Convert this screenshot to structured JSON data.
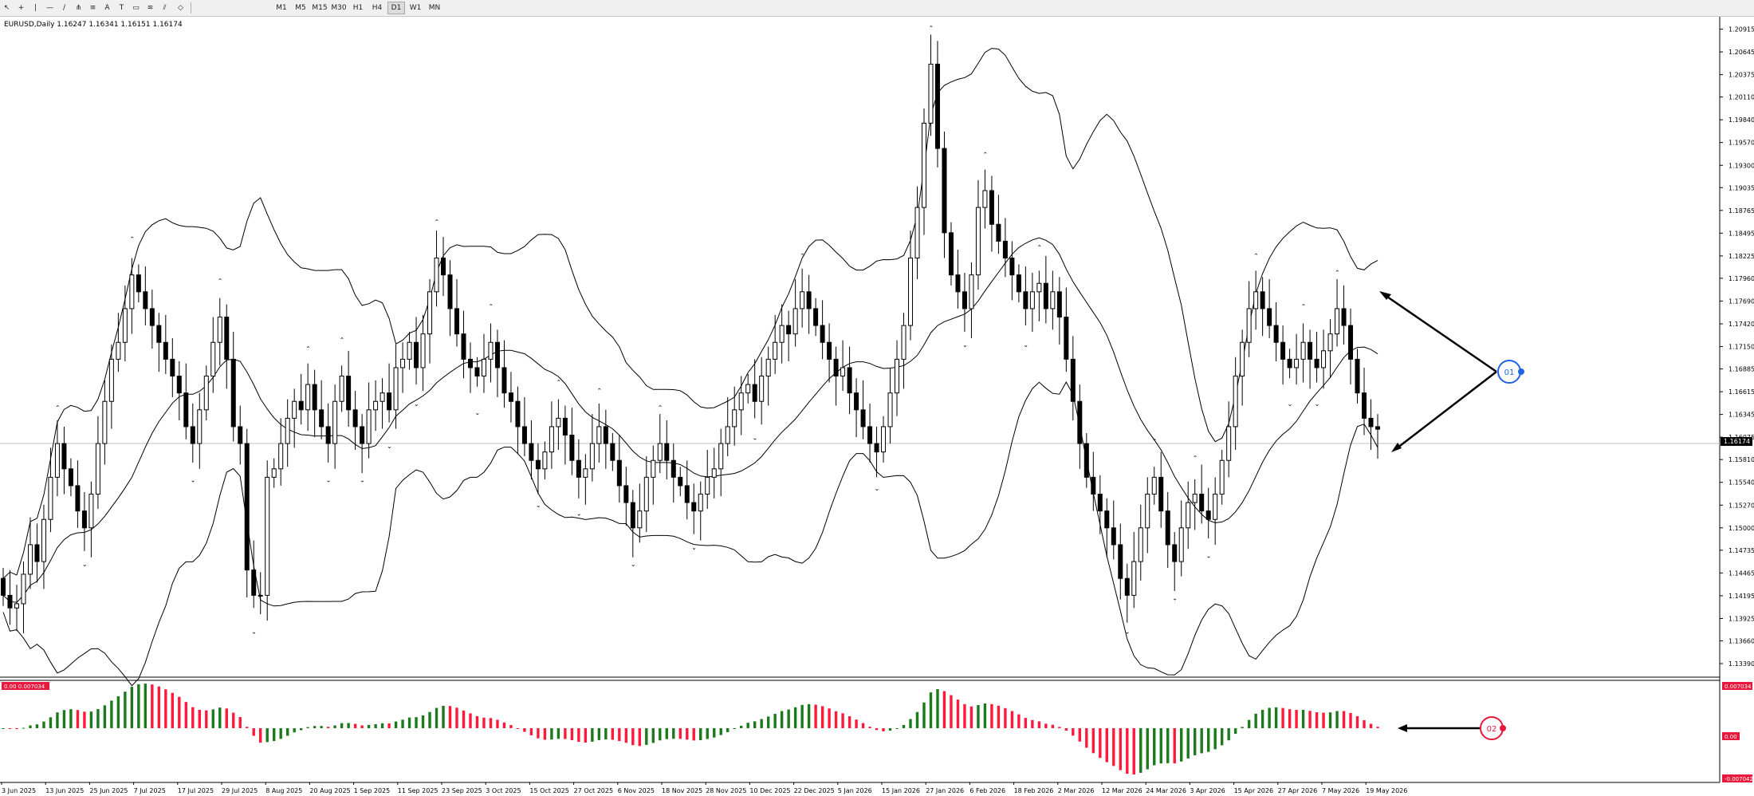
{
  "toolbar": {
    "tools": [
      {
        "name": "cursor-tool-icon",
        "x": 8
      },
      {
        "name": "crosshair-tool-icon",
        "x": 26
      },
      {
        "name": "vertical-line-tool-icon",
        "x": 44
      },
      {
        "name": "horizontal-line-tool-icon",
        "x": 62
      },
      {
        "name": "trendline-tool-icon",
        "x": 80
      },
      {
        "name": "pitchfork-tool-icon",
        "x": 98
      },
      {
        "name": "channel-tool-icon",
        "x": 116
      },
      {
        "name": "text-tool-icon",
        "x": 134
      },
      {
        "name": "text-label-tool-icon",
        "x": 152
      },
      {
        "name": "label-tool-icon",
        "x": 170
      },
      {
        "name": "fibonacci-tool-icon",
        "x": 188
      },
      {
        "name": "gann-tool-icon",
        "x": 206
      },
      {
        "name": "shapes-tool-icon",
        "x": 226
      }
    ],
    "timeframes": [
      "M1",
      "M5",
      "M15",
      "M30",
      "H1",
      "H4",
      "D1",
      "W1",
      "MN"
    ],
    "active_timeframe": "D1"
  },
  "chart_header": "EURUSD,Daily  1.16247 1.16341 1.16151 1.16174",
  "current_price": "1.16174",
  "price_axis_labels": [
    "1.20915",
    "1.20645",
    "1.20375",
    "1.20110",
    "1.19840",
    "1.19570",
    "1.19300",
    "1.19035",
    "1.18765",
    "1.18495",
    "1.18225",
    "1.17960",
    "1.17690",
    "1.17420",
    "1.17150",
    "1.16885",
    "1.16615",
    "1.16345",
    "1.16075",
    "1.15810",
    "1.15540",
    "1.15270",
    "1.15000",
    "1.14735",
    "1.14465",
    "1.14195",
    "1.13925",
    "1.13660",
    "1.13390"
  ],
  "date_axis_labels": [
    "3 Jun 2025",
    "13 Jun 2025",
    "25 Jun 2025",
    "7 Jul 2025",
    "17 Jul 2025",
    "29 Jul 2025",
    "8 Aug 2025",
    "20 Aug 2025",
    "1 Sep 2025",
    "11 Sep 2025",
    "23 Sep 2025",
    "3 Oct 2025",
    "15 Oct 2025",
    "27 Oct 2025",
    "6 Nov 2025",
    "18 Nov 2025",
    "28 Nov 2025",
    "10 Dec 2025",
    "22 Dec 2025",
    "5 Jan 2026",
    "15 Jan 2026",
    "27 Jan 2026",
    "6 Feb 2026",
    "18 Feb 2026",
    "2 Mar 2026",
    "12 Mar 2026",
    "24 Mar 2026",
    "3 Apr 2026",
    "15 Apr 2026",
    "27 Apr 2026",
    "7 May 2026",
    "19 May 2026"
  ],
  "oscillator": {
    "label": "0.00  0.007034",
    "axis_top": "0.007034",
    "axis_mid": "0.00",
    "axis_bottom": "-0.007042"
  },
  "annotations": {
    "marker_1": "01",
    "marker_2": "02"
  },
  "colors": {
    "bull": "#1b7a1b",
    "bear": "#ff1a3c",
    "marker_blue": "#1f63e6",
    "marker_red": "#e8193c"
  },
  "chart_data": {
    "type": "candlestick",
    "symbol": "EURUSD",
    "timeframe": "Daily",
    "ohlc_last": {
      "open": 1.16247,
      "high": 1.16341,
      "low": 1.16151,
      "close": 1.16174
    },
    "ylim": [
      1.1339,
      1.2092
    ],
    "close": [
      1.142,
      1.1405,
      1.141,
      1.1445,
      1.148,
      1.146,
      1.151,
      1.156,
      1.16,
      1.157,
      1.155,
      1.152,
      1.15,
      1.154,
      1.16,
      1.165,
      1.17,
      1.172,
      1.176,
      1.18,
      1.178,
      1.176,
      1.174,
      1.172,
      1.17,
      1.168,
      1.166,
      1.162,
      1.16,
      1.164,
      1.168,
      1.172,
      1.175,
      1.17,
      1.162,
      1.16,
      1.145,
      1.142,
      1.142,
      1.156,
      1.157,
      1.16,
      1.163,
      1.165,
      1.164,
      1.167,
      1.164,
      1.162,
      1.16,
      1.165,
      1.168,
      1.164,
      1.162,
      1.16,
      1.164,
      1.165,
      1.166,
      1.164,
      1.169,
      1.17,
      1.172,
      1.169,
      1.173,
      1.178,
      1.182,
      1.18,
      1.176,
      1.173,
      1.17,
      1.169,
      1.168,
      1.17,
      1.172,
      1.169,
      1.166,
      1.165,
      1.162,
      1.16,
      1.158,
      1.157,
      1.159,
      1.162,
      1.163,
      1.161,
      1.158,
      1.156,
      1.157,
      1.16,
      1.162,
      1.16,
      1.158,
      1.155,
      1.153,
      1.15,
      1.152,
      1.156,
      1.158,
      1.16,
      1.158,
      1.156,
      1.155,
      1.153,
      1.152,
      1.154,
      1.156,
      1.157,
      1.16,
      1.162,
      1.164,
      1.166,
      1.167,
      1.165,
      1.168,
      1.17,
      1.172,
      1.174,
      1.173,
      1.176,
      1.178,
      1.176,
      1.174,
      1.172,
      1.17,
      1.168,
      1.169,
      1.166,
      1.164,
      1.162,
      1.16,
      1.159,
      1.162,
      1.166,
      1.17,
      1.174,
      1.182,
      1.188,
      1.198,
      1.205,
      1.195,
      1.185,
      1.18,
      1.178,
      1.176,
      1.18,
      1.188,
      1.19,
      1.186,
      1.184,
      1.182,
      1.18,
      1.178,
      1.176,
      1.178,
      1.179,
      1.176,
      1.178,
      1.175,
      1.17,
      1.165,
      1.16,
      1.156,
      1.154,
      1.152,
      1.15,
      1.148,
      1.144,
      1.142,
      1.146,
      1.15,
      1.154,
      1.156,
      1.152,
      1.148,
      1.146,
      1.15,
      1.153,
      1.154,
      1.152,
      1.151,
      1.154,
      1.158,
      1.162,
      1.168,
      1.172,
      1.176,
      1.178,
      1.176,
      1.174,
      1.172,
      1.17,
      1.169,
      1.17,
      1.172,
      1.17,
      1.169,
      1.171,
      1.173,
      1.176,
      1.174,
      1.17,
      1.166,
      1.163,
      1.162,
      1.1617
    ]
  }
}
